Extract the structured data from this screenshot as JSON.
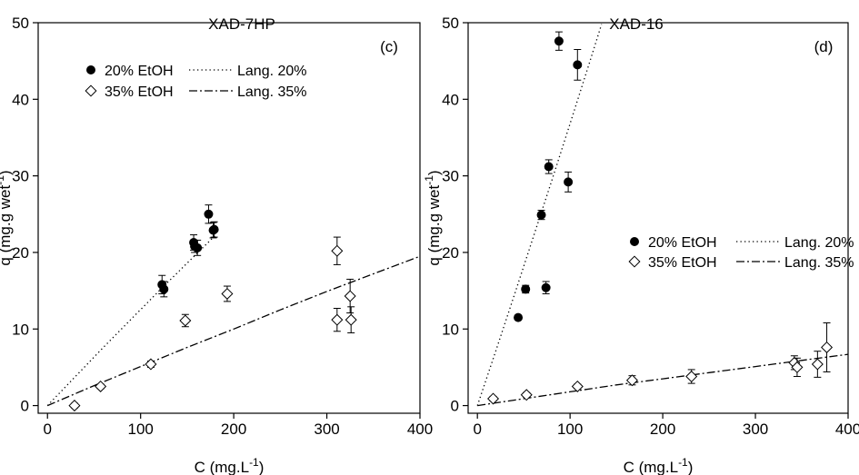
{
  "chart_data": [
    {
      "type": "scatter",
      "title": "XAD-7HP",
      "panel_label": "(c)",
      "xlabel": "C (mg.L",
      "xlabel_sup": "-1",
      "xlabel_end": ")",
      "ylabel": "q (mg.g wet",
      "ylabel_sup": "-1",
      "ylabel_end": ")",
      "xlim": [
        -10,
        400
      ],
      "ylim": [
        -1,
        50
      ],
      "xticks": [
        0,
        100,
        200,
        300,
        400
      ],
      "yticks": [
        0,
        10,
        20,
        30,
        40,
        50
      ],
      "grid": false,
      "legend_position": "top-left",
      "series": [
        {
          "name": "20% EtOH",
          "marker": "filled-circle",
          "points": [
            {
              "x": 123,
              "y": 15.8,
              "err": 1.2
            },
            {
              "x": 125,
              "y": 15.2,
              "err": 1.0
            },
            {
              "x": 157,
              "y": 21.3,
              "err": 1.0
            },
            {
              "x": 158,
              "y": 20.8,
              "err": 0.8
            },
            {
              "x": 161,
              "y": 20.6,
              "err": 1.0
            },
            {
              "x": 173,
              "y": 25.0,
              "err": 1.2
            },
            {
              "x": 178,
              "y": 22.9,
              "err": 1.0
            },
            {
              "x": 179,
              "y": 23.0,
              "err": 1.0
            }
          ]
        },
        {
          "name": "35% EtOH",
          "marker": "open-diamond",
          "points": [
            {
              "x": 29,
              "y": 0.0,
              "err": 0.3
            },
            {
              "x": 57,
              "y": 2.5,
              "err": 0.3
            },
            {
              "x": 111,
              "y": 5.4,
              "err": 0.4
            },
            {
              "x": 148,
              "y": 11.1,
              "err": 0.8
            },
            {
              "x": 193,
              "y": 14.6,
              "err": 1.0
            },
            {
              "x": 311,
              "y": 20.2,
              "err": 1.8
            },
            {
              "x": 311,
              "y": 11.2,
              "err": 1.5
            },
            {
              "x": 325,
              "y": 14.3,
              "err": 2.2
            },
            {
              "x": 326,
              "y": 11.2,
              "err": 1.7
            }
          ]
        },
        {
          "name": "Lang. 20%",
          "line_style": "dotted",
          "x": [
            0,
            30,
            60,
            90,
            120,
            150,
            180
          ],
          "y": [
            0,
            3.8,
            7.6,
            11.3,
            15.0,
            18.6,
            22.2
          ]
        },
        {
          "name": "Lang. 35%",
          "line_style": "dash-dot",
          "x": [
            0,
            50,
            100,
            150,
            200,
            250,
            300,
            350,
            400
          ],
          "y": [
            0,
            2.6,
            5.1,
            7.6,
            10.0,
            12.5,
            14.9,
            17.2,
            19.5
          ]
        }
      ]
    },
    {
      "type": "scatter",
      "title": "XAD-16",
      "panel_label": "(d)",
      "xlabel": "C (mg.L",
      "xlabel_sup": "-1",
      "xlabel_end": ")",
      "ylabel": "q (mg.g wet",
      "ylabel_sup": "-1",
      "ylabel_end": ")",
      "xlim": [
        -10,
        400
      ],
      "ylim": [
        -1,
        50
      ],
      "xticks": [
        0,
        100,
        200,
        300,
        400
      ],
      "yticks": [
        0,
        10,
        20,
        30,
        40,
        50
      ],
      "grid": false,
      "legend_position": "right-middle",
      "series": [
        {
          "name": "20% EtOH",
          "marker": "filled-circle",
          "points": [
            {
              "x": 44,
              "y": 11.5,
              "err": 0.3
            },
            {
              "x": 52,
              "y": 15.2,
              "err": 0.5
            },
            {
              "x": 69,
              "y": 24.9,
              "err": 0.6
            },
            {
              "x": 74,
              "y": 15.4,
              "err": 0.8
            },
            {
              "x": 77,
              "y": 31.2,
              "err": 0.9
            },
            {
              "x": 88,
              "y": 47.6,
              "err": 1.2
            },
            {
              "x": 98,
              "y": 29.2,
              "err": 1.3
            },
            {
              "x": 108,
              "y": 44.5,
              "err": 2.0
            }
          ]
        },
        {
          "name": "35% EtOH",
          "marker": "open-diamond",
          "points": [
            {
              "x": 17,
              "y": 0.9,
              "err": 0.3
            },
            {
              "x": 53,
              "y": 1.4,
              "err": 0.3
            },
            {
              "x": 108,
              "y": 2.5,
              "err": 0.3
            },
            {
              "x": 167,
              "y": 3.3,
              "err": 0.6
            },
            {
              "x": 231,
              "y": 3.8,
              "err": 0.9
            },
            {
              "x": 342,
              "y": 5.6,
              "err": 0.9
            },
            {
              "x": 345,
              "y": 5.0,
              "err": 1.2
            },
            {
              "x": 367,
              "y": 5.4,
              "err": 1.7
            },
            {
              "x": 377,
              "y": 7.6,
              "err": 3.2
            }
          ]
        },
        {
          "name": "Lang. 20%",
          "line_style": "dotted",
          "x": [
            0,
            20,
            40,
            60,
            80,
            100,
            120,
            134
          ],
          "y": [
            0,
            7.2,
            14.5,
            21.9,
            29.3,
            36.8,
            44.4,
            49.8
          ]
        },
        {
          "name": "Lang. 35%",
          "line_style": "dash-dot",
          "x": [
            0,
            50,
            100,
            150,
            200,
            250,
            300,
            350,
            400
          ],
          "y": [
            0,
            0.9,
            1.8,
            2.7,
            3.5,
            4.3,
            5.1,
            5.9,
            6.7
          ]
        }
      ]
    }
  ]
}
